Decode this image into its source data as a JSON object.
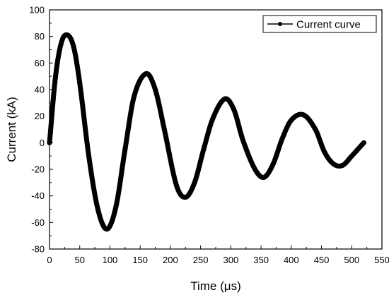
{
  "chart_data": {
    "type": "line",
    "title": "",
    "xlabel": "Time (μs)",
    "ylabel": "Current (kA)",
    "xlim": [
      0,
      550
    ],
    "ylim": [
      -80,
      100
    ],
    "xticks": [
      0,
      50,
      100,
      150,
      200,
      250,
      300,
      350,
      400,
      450,
      500,
      550
    ],
    "yticks": [
      -80,
      -60,
      -40,
      -20,
      0,
      20,
      40,
      60,
      80,
      100
    ],
    "grid": false,
    "legend_position": "top-right",
    "line_color": "#000000",
    "marker": "circle",
    "series": [
      {
        "name": "Current curve",
        "x": [
          0,
          10,
          20,
          30,
          40,
          50,
          65,
          80,
          95,
          110,
          125,
          140,
          160,
          175,
          190,
          210,
          225,
          240,
          255,
          270,
          290,
          305,
          320,
          340,
          355,
          370,
          385,
          400,
          420,
          440,
          455,
          470,
          485,
          500,
          520
        ],
        "y": [
          0,
          50,
          76,
          81,
          72,
          45,
          -10,
          -50,
          -65,
          -48,
          -5,
          35,
          52,
          40,
          10,
          -32,
          -41,
          -30,
          -5,
          18,
          33,
          25,
          2,
          -20,
          -26,
          -16,
          3,
          17,
          21,
          10,
          -7,
          -16,
          -17,
          -10,
          0
        ]
      }
    ]
  }
}
